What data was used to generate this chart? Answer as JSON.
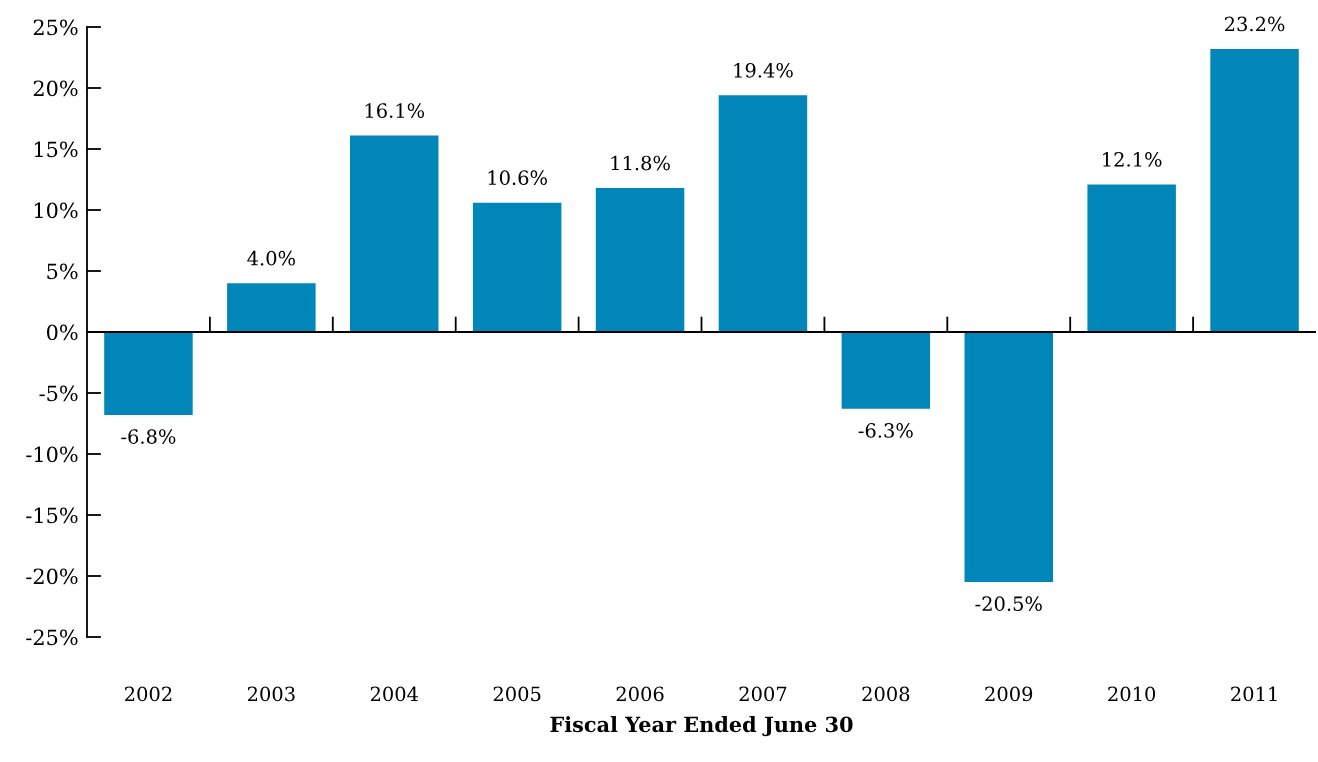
{
  "chart_data": {
    "type": "bar",
    "xlabel": "Fiscal Year Ended June 30",
    "categories": [
      "2002",
      "2003",
      "2004",
      "2005",
      "2006",
      "2007",
      "2008",
      "2009",
      "2010",
      "2011"
    ],
    "values": [
      -6.8,
      4.0,
      16.1,
      10.6,
      11.8,
      19.4,
      -6.3,
      -20.5,
      12.1,
      23.2
    ],
    "value_labels": [
      "-6.8%",
      "4.0%",
      "16.1%",
      "10.6%",
      "11.8%",
      "19.4%",
      "-6.3%",
      "-20.5%",
      "12.1%",
      "23.2%"
    ],
    "color": "#0086b8",
    "ylim": [
      -25,
      25
    ],
    "yticks": [
      {
        "value": 25,
        "label": "25%"
      },
      {
        "value": 20,
        "label": "20%"
      },
      {
        "value": 15,
        "label": "15%"
      },
      {
        "value": 10,
        "label": "10%"
      },
      {
        "value": 5,
        "label": "5%"
      },
      {
        "value": 0,
        "label": "0%"
      },
      {
        "value": -5,
        "label": "-5%"
      },
      {
        "value": -10,
        "label": "-10%"
      },
      {
        "value": -15,
        "label": "-15%"
      },
      {
        "value": -20,
        "label": "-20%"
      },
      {
        "value": -25,
        "label": "-25%"
      }
    ],
    "ref_lines": [
      {
        "axis": "y",
        "value": 0,
        "color": "#000000"
      }
    ],
    "grid": false,
    "legend": false
  }
}
